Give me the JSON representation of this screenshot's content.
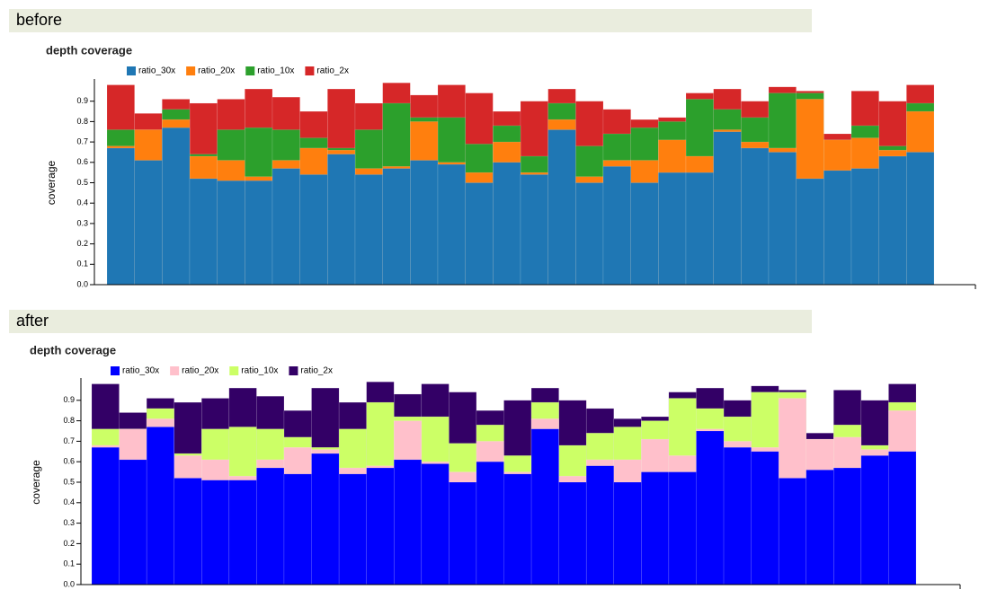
{
  "section_labels": [
    "before",
    "after"
  ],
  "chart_data": [
    {
      "type": "bar",
      "title": "depth coverage",
      "y_label": "coverage",
      "ylim": [
        0,
        1.0
      ],
      "yticks": [
        {
          "value": 0,
          "label": "0.0"
        },
        0.1,
        0.2,
        0.3,
        0.4,
        0.5,
        0.6,
        0.7,
        0.8,
        0.9
      ],
      "series": [
        {
          "name": "ratio_30x",
          "color": "#1f77b4",
          "values": [
            0.67,
            0.61,
            0.77,
            0.52,
            0.51,
            0.51,
            0.57,
            0.54,
            0.64,
            0.54,
            0.57,
            0.61,
            0.59,
            0.5,
            0.6,
            0.54,
            0.76,
            0.5,
            0.58,
            0.5,
            0.55,
            0.55,
            0.75,
            0.67,
            0.65,
            0.52,
            0.56,
            0.57,
            0.63,
            0.65
          ]
        },
        {
          "name": "ratio_20x",
          "color": "#ff7f0e",
          "values": [
            0.68,
            0.76,
            0.81,
            0.63,
            0.61,
            0.53,
            0.61,
            0.67,
            0.66,
            0.57,
            0.58,
            0.8,
            0.6,
            0.55,
            0.7,
            0.55,
            0.81,
            0.53,
            0.61,
            0.61,
            0.71,
            0.63,
            0.76,
            0.7,
            0.67,
            0.91,
            0.71,
            0.72,
            0.66,
            0.85
          ]
        },
        {
          "name": "ratio_10x",
          "color": "#2ca02c",
          "values": [
            0.76,
            0.76,
            0.86,
            0.64,
            0.76,
            0.77,
            0.76,
            0.72,
            0.67,
            0.76,
            0.89,
            0.82,
            0.82,
            0.69,
            0.78,
            0.63,
            0.89,
            0.68,
            0.74,
            0.77,
            0.8,
            0.91,
            0.86,
            0.82,
            0.94,
            0.94,
            0.71,
            0.78,
            0.68,
            0.89
          ]
        },
        {
          "name": "ratio_2x",
          "color": "#d62728",
          "values": [
            0.98,
            0.84,
            0.91,
            0.89,
            0.91,
            0.96,
            0.92,
            0.85,
            0.96,
            0.89,
            0.99,
            0.93,
            0.98,
            0.94,
            0.85,
            0.9,
            0.96,
            0.9,
            0.86,
            0.81,
            0.82,
            0.94,
            0.96,
            0.9,
            0.97,
            0.95,
            0.74,
            0.95,
            0.9,
            0.98
          ]
        }
      ]
    },
    {
      "type": "bar",
      "title": "depth coverage",
      "y_label": "coverage",
      "ylim": [
        0,
        1.0
      ],
      "yticks": [
        {
          "value": 0,
          "label": "0.0"
        },
        0.1,
        0.2,
        0.3,
        0.4,
        0.5,
        0.6,
        0.7,
        0.8,
        0.9
      ],
      "series": [
        {
          "name": "ratio_30x",
          "color": "#0000ff",
          "values": [
            0.67,
            0.61,
            0.77,
            0.52,
            0.51,
            0.51,
            0.57,
            0.54,
            0.64,
            0.54,
            0.57,
            0.61,
            0.59,
            0.5,
            0.6,
            0.54,
            0.76,
            0.5,
            0.58,
            0.5,
            0.55,
            0.55,
            0.75,
            0.67,
            0.65,
            0.52,
            0.56,
            0.57,
            0.63,
            0.65
          ]
        },
        {
          "name": "ratio_20x",
          "color": "#ffc0cb",
          "values": [
            0.68,
            0.76,
            0.81,
            0.63,
            0.61,
            0.53,
            0.61,
            0.67,
            0.66,
            0.57,
            0.58,
            0.8,
            0.6,
            0.55,
            0.7,
            0.55,
            0.81,
            0.53,
            0.61,
            0.61,
            0.71,
            0.63,
            0.76,
            0.7,
            0.67,
            0.91,
            0.71,
            0.72,
            0.66,
            0.85
          ]
        },
        {
          "name": "ratio_10x",
          "color": "#ccff66",
          "values": [
            0.76,
            0.76,
            0.86,
            0.64,
            0.76,
            0.77,
            0.76,
            0.72,
            0.67,
            0.76,
            0.89,
            0.82,
            0.82,
            0.69,
            0.78,
            0.63,
            0.89,
            0.68,
            0.74,
            0.77,
            0.8,
            0.91,
            0.86,
            0.82,
            0.94,
            0.94,
            0.71,
            0.78,
            0.68,
            0.89
          ]
        },
        {
          "name": "ratio_2x",
          "color": "#330066",
          "values": [
            0.98,
            0.84,
            0.91,
            0.89,
            0.91,
            0.96,
            0.92,
            0.85,
            0.96,
            0.89,
            0.99,
            0.93,
            0.98,
            0.94,
            0.85,
            0.9,
            0.96,
            0.9,
            0.86,
            0.81,
            0.82,
            0.94,
            0.96,
            0.9,
            0.97,
            0.95,
            0.74,
            0.95,
            0.9,
            0.98
          ]
        }
      ]
    }
  ]
}
